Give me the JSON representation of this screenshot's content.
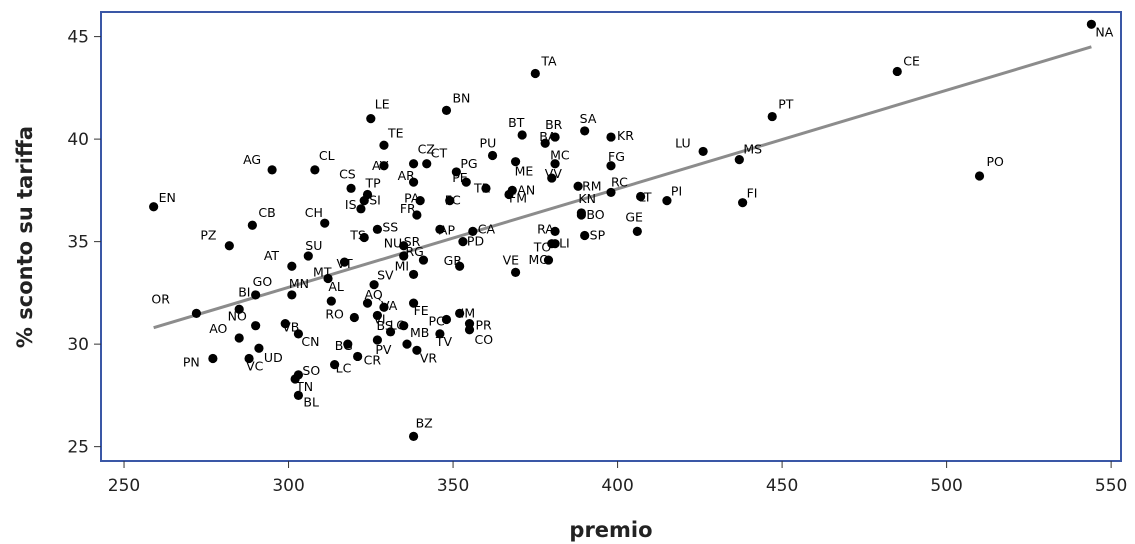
{
  "chart_data": {
    "type": "scatter",
    "xlabel": "premio",
    "ylabel": "% sconto su tariffa",
    "xlim": [
      243,
      553
    ],
    "ylim": [
      24.3,
      46.2
    ],
    "xticks": [
      250,
      300,
      350,
      400,
      450,
      500,
      550
    ],
    "yticks": [
      25,
      30,
      35,
      40,
      45
    ],
    "grid": false,
    "colors": {
      "frame": "#3a57a6",
      "point": "#000000",
      "fit": "#8c8c8c"
    },
    "fit_line": {
      "x": [
        259,
        544
      ],
      "y": [
        30.8,
        44.5
      ]
    },
    "points": [
      {
        "label": "NA",
        "x": 544,
        "y": 45.6,
        "dx": 4,
        "dy": 12
      },
      {
        "label": "CE",
        "x": 485,
        "y": 43.3,
        "dx": 6,
        "dy": -6
      },
      {
        "label": "TA",
        "x": 375,
        "y": 43.2,
        "dx": 6,
        "dy": -8
      },
      {
        "label": "PT",
        "x": 447,
        "y": 41.1,
        "dx": 6,
        "dy": -8
      },
      {
        "label": "BN",
        "x": 348,
        "y": 41.4,
        "dx": 6,
        "dy": -8
      },
      {
        "label": "LE",
        "x": 325,
        "y": 41.0,
        "dx": 4,
        "dy": -10
      },
      {
        "label": "SA",
        "x": 390,
        "y": 40.4,
        "dx": -5,
        "dy": -8
      },
      {
        "label": "TE",
        "x": 329,
        "y": 39.7,
        "dx": 4,
        "dy": -8
      },
      {
        "label": "BT",
        "x": 371,
        "y": 40.2,
        "dx": -14,
        "dy": -8
      },
      {
        "label": "BR",
        "x": 381,
        "y": 40.1,
        "dx": -10,
        "dy": -8
      },
      {
        "label": "KR",
        "x": 398,
        "y": 40.1,
        "dx": 6,
        "dy": 3
      },
      {
        "label": "LU",
        "x": 426,
        "y": 39.4,
        "dx": -28,
        "dy": -4
      },
      {
        "label": "MS",
        "x": 437,
        "y": 39.0,
        "dx": 4,
        "dy": -6
      },
      {
        "label": "BA",
        "x": 378,
        "y": 39.8,
        "dx": -6,
        "dy": -2
      },
      {
        "label": "FG",
        "x": 398,
        "y": 38.7,
        "dx": -3,
        "dy": -5
      },
      {
        "label": "PU",
        "x": 362,
        "y": 39.2,
        "dx": -13,
        "dy": -8
      },
      {
        "label": "MC",
        "x": 381,
        "y": 38.8,
        "dx": -5,
        "dy": -4
      },
      {
        "label": "CZ",
        "x": 338,
        "y": 38.8,
        "dx": 4,
        "dy": -10
      },
      {
        "label": "CT",
        "x": 342,
        "y": 38.8,
        "dx": 4,
        "dy": -6
      },
      {
        "label": "AV",
        "x": 329,
        "y": 38.7,
        "dx": -12,
        "dy": 4
      },
      {
        "label": "PG",
        "x": 351,
        "y": 38.4,
        "dx": 4,
        "dy": -4
      },
      {
        "label": "AG",
        "x": 295,
        "y": 38.5,
        "dx": -29,
        "dy": -6
      },
      {
        "label": "CL",
        "x": 308,
        "y": 38.5,
        "dx": 4,
        "dy": -10
      },
      {
        "label": "ME",
        "x": 369,
        "y": 38.9,
        "dx": -1,
        "dy": 14
      },
      {
        "label": "VV",
        "x": 380,
        "y": 38.1,
        "dx": -7,
        "dy": 0
      },
      {
        "label": "RC",
        "x": 398,
        "y": 37.4,
        "dx": 0,
        "dy": -6
      },
      {
        "label": "PO",
        "x": 510,
        "y": 38.2,
        "dx": 7,
        "dy": -10
      },
      {
        "label": "CS",
        "x": 319,
        "y": 37.6,
        "dx": -12,
        "dy": -10
      },
      {
        "label": "AR",
        "x": 338,
        "y": 37.9,
        "dx": -16,
        "dy": -2
      },
      {
        "label": "PE",
        "x": 354,
        "y": 37.9,
        "dx": -14,
        "dy": 0
      },
      {
        "label": "TR",
        "x": 360,
        "y": 37.6,
        "dx": -12,
        "dy": 4
      },
      {
        "label": "AN",
        "x": 368,
        "y": 37.5,
        "dx": 5,
        "dy": 4
      },
      {
        "label": "RM",
        "x": 388,
        "y": 37.7,
        "dx": 4,
        "dy": 4
      },
      {
        "label": "FC",
        "x": 349,
        "y": 37.0,
        "dx": -5,
        "dy": 4
      },
      {
        "label": "FM",
        "x": 367,
        "y": 37.3,
        "dx": 0,
        "dy": 8
      },
      {
        "label": "TP",
        "x": 324,
        "y": 37.3,
        "dx": -2,
        "dy": -7
      },
      {
        "label": "EN",
        "x": 259,
        "y": 36.7,
        "dx": 5,
        "dy": -5
      },
      {
        "label": "LT",
        "x": 407,
        "y": 37.2,
        "dx": -2,
        "dy": 5
      },
      {
        "label": "PI",
        "x": 415,
        "y": 37.0,
        "dx": 4,
        "dy": -5
      },
      {
        "label": "FI",
        "x": 438,
        "y": 36.9,
        "dx": 4,
        "dy": -5
      },
      {
        "label": "IS",
        "x": 322,
        "y": 36.6,
        "dx": -16,
        "dy": 0
      },
      {
        "label": "SI",
        "x": 323,
        "y": 37.0,
        "dx": 5,
        "dy": 4
      },
      {
        "label": "PA",
        "x": 340,
        "y": 37.0,
        "dx": -16,
        "dy": 2
      },
      {
        "label": "FR",
        "x": 339,
        "y": 36.3,
        "dx": -17,
        "dy": -2
      },
      {
        "label": "KN",
        "x": 389,
        "y": 36.4,
        "dx": -3,
        "dy": -10
      },
      {
        "label": "BO",
        "x": 389,
        "y": 36.3,
        "dx": 5,
        "dy": 4
      },
      {
        "label": "GE",
        "x": 406,
        "y": 35.5,
        "dx": -12,
        "dy": -10
      },
      {
        "label": "CB",
        "x": 289,
        "y": 35.8,
        "dx": 6,
        "dy": -8
      },
      {
        "label": "CH",
        "x": 311,
        "y": 35.9,
        "dx": -20,
        "dy": -6
      },
      {
        "label": "SS",
        "x": 327,
        "y": 35.6,
        "dx": 5,
        "dy": 2
      },
      {
        "label": "AP",
        "x": 346,
        "y": 35.6,
        "dx": -1,
        "dy": 5
      },
      {
        "label": "CA",
        "x": 356,
        "y": 35.5,
        "dx": 5,
        "dy": 2
      },
      {
        "label": "RA",
        "x": 381,
        "y": 35.5,
        "dx": -18,
        "dy": 2
      },
      {
        "label": "SP",
        "x": 390,
        "y": 35.3,
        "dx": 5,
        "dy": 4
      },
      {
        "label": "PZ",
        "x": 282,
        "y": 34.8,
        "dx": -29,
        "dy": -6
      },
      {
        "label": "TS",
        "x": 323,
        "y": 35.2,
        "dx": -14,
        "dy": 2
      },
      {
        "label": "PD",
        "x": 353,
        "y": 35.0,
        "dx": 4,
        "dy": 4
      },
      {
        "label": "LI",
        "x": 381,
        "y": 34.9,
        "dx": 4,
        "dy": 4
      },
      {
        "label": "TO",
        "x": 380,
        "y": 34.9,
        "dx": -18,
        "dy": 8
      },
      {
        "label": "NU",
        "x": 335,
        "y": 34.8,
        "dx": -20,
        "dy": 2
      },
      {
        "label": "SR",
        "x": 335,
        "y": 34.3,
        "dx": 0,
        "dy": -10
      },
      {
        "label": "AT",
        "x": 301,
        "y": 33.8,
        "dx": -28,
        "dy": -6
      },
      {
        "label": "SU",
        "x": 306,
        "y": 34.3,
        "dx": -3,
        "dy": -6
      },
      {
        "label": "VT",
        "x": 317,
        "y": 34.0,
        "dx": -8,
        "dy": 6
      },
      {
        "label": "RG",
        "x": 341,
        "y": 34.1,
        "dx": -18,
        "dy": -4
      },
      {
        "label": "GR",
        "x": 352,
        "y": 33.8,
        "dx": -16,
        "dy": -1
      },
      {
        "label": "VE",
        "x": 369,
        "y": 33.5,
        "dx": -13,
        "dy": -8
      },
      {
        "label": "MO",
        "x": 379,
        "y": 34.1,
        "dx": -20,
        "dy": 4
      },
      {
        "label": "MT",
        "x": 312,
        "y": 33.2,
        "dx": -15,
        "dy": -2
      },
      {
        "label": "MI",
        "x": 338,
        "y": 33.4,
        "dx": -19,
        "dy": -4
      },
      {
        "label": "GO",
        "x": 290,
        "y": 32.4,
        "dx": -3,
        "dy": -9
      },
      {
        "label": "MN",
        "x": 301,
        "y": 32.4,
        "dx": -3,
        "dy": -7
      },
      {
        "label": "AL",
        "x": 313,
        "y": 32.1,
        "dx": -3,
        "dy": -10
      },
      {
        "label": "SV",
        "x": 326,
        "y": 32.9,
        "dx": 3,
        "dy": -5
      },
      {
        "label": "AQ",
        "x": 324,
        "y": 32.0,
        "dx": -3,
        "dy": -4
      },
      {
        "label": "OR",
        "x": 272,
        "y": 31.5,
        "dx": -45,
        "dy": -10
      },
      {
        "label": "BI",
        "x": 285,
        "y": 31.7,
        "dx": -1,
        "dy": -13
      },
      {
        "label": "VA",
        "x": 329,
        "y": 31.8,
        "dx": -3,
        "dy": 3
      },
      {
        "label": "FE",
        "x": 338,
        "y": 32.0,
        "dx": 0,
        "dy": 12
      },
      {
        "label": "VB",
        "x": 299,
        "y": 31.0,
        "dx": -3,
        "dy": 8
      },
      {
        "label": "RO",
        "x": 320,
        "y": 31.3,
        "dx": -29,
        "dy": 1
      },
      {
        "label": "VI",
        "x": 327,
        "y": 31.4,
        "dx": -4,
        "dy": 8
      },
      {
        "label": "IM",
        "x": 352,
        "y": 31.5,
        "dx": 1,
        "dy": 4
      },
      {
        "label": "PC",
        "x": 348,
        "y": 31.2,
        "dx": -18,
        "dy": 6
      },
      {
        "label": "PR",
        "x": 355,
        "y": 31.0,
        "dx": 6,
        "dy": 6
      },
      {
        "label": "NO",
        "x": 290,
        "y": 30.9,
        "dx": -28,
        "dy": -5
      },
      {
        "label": "AO",
        "x": 285,
        "y": 30.3,
        "dx": -30,
        "dy": -5
      },
      {
        "label": "BS",
        "x": 331,
        "y": 30.6,
        "dx": -14,
        "dy": -2
      },
      {
        "label": "LO",
        "x": 335,
        "y": 30.9,
        "dx": -14,
        "dy": 4
      },
      {
        "label": "MB",
        "x": 336,
        "y": 30.0,
        "dx": 3,
        "dy": -7
      },
      {
        "label": "CO",
        "x": 355,
        "y": 30.7,
        "dx": 5,
        "dy": 14
      },
      {
        "label": "TV",
        "x": 346,
        "y": 30.5,
        "dx": -4,
        "dy": 12
      },
      {
        "label": "CN",
        "x": 303,
        "y": 30.5,
        "dx": 3,
        "dy": 12
      },
      {
        "label": "BG",
        "x": 318,
        "y": 30.0,
        "dx": -13,
        "dy": 6
      },
      {
        "label": "UD",
        "x": 291,
        "y": 29.8,
        "dx": 5,
        "dy": 14
      },
      {
        "label": "PV",
        "x": 327,
        "y": 30.2,
        "dx": -2,
        "dy": 14
      },
      {
        "label": "VR",
        "x": 339,
        "y": 29.7,
        "dx": 3,
        "dy": 12
      },
      {
        "label": "PN",
        "x": 277,
        "y": 29.3,
        "dx": -30,
        "dy": 8
      },
      {
        "label": "VC",
        "x": 288,
        "y": 29.3,
        "dx": -3,
        "dy": 12
      },
      {
        "label": "LC",
        "x": 314,
        "y": 29.0,
        "dx": 1,
        "dy": 8
      },
      {
        "label": "CR",
        "x": 321,
        "y": 29.4,
        "dx": 6,
        "dy": 8
      },
      {
        "label": "SO",
        "x": 303,
        "y": 28.5,
        "dx": 4,
        "dy": 0
      },
      {
        "label": "TN",
        "x": 302,
        "y": 28.3,
        "dx": 1,
        "dy": 12
      },
      {
        "label": "BL",
        "x": 303,
        "y": 27.5,
        "dx": 5,
        "dy": 11
      },
      {
        "label": "BZ",
        "x": 338,
        "y": 25.5,
        "dx": 2,
        "dy": -9
      }
    ]
  }
}
